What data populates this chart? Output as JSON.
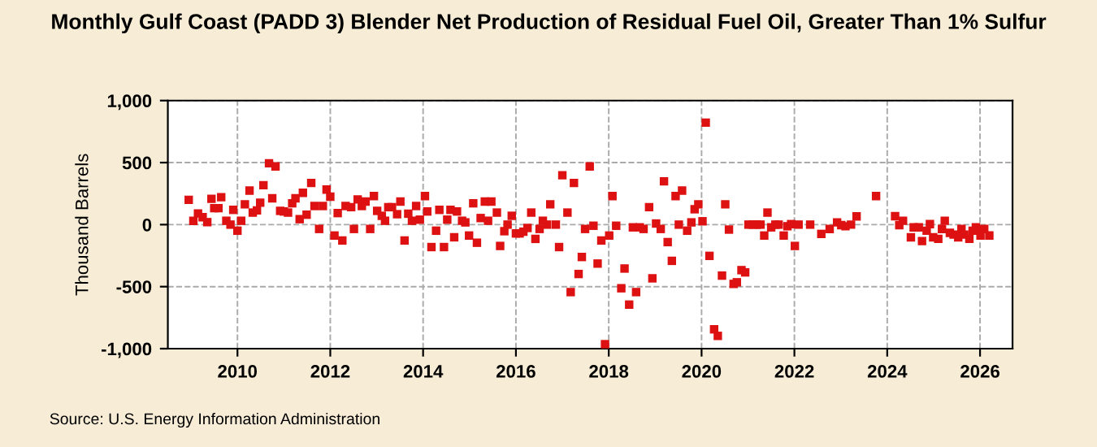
{
  "chart_data": {
    "type": "scatter",
    "title": "Monthly Gulf Coast (PADD 3) Blender Net Production of Residual Fuel Oil, Greater Than 1% Sulfur",
    "ylabel": "Thousand Barrels",
    "annotations": [
      "Source: U.S. Energy Information Administration"
    ],
    "x": [
      2008.95,
      2009.05,
      2009.15,
      2009.25,
      2009.35,
      2009.44,
      2009.5,
      2009.59,
      2009.65,
      2009.76,
      2009.85,
      2009.91,
      2010.0,
      2010.08,
      2010.16,
      2010.26,
      2010.33,
      2010.42,
      2010.49,
      2010.56,
      2010.68,
      2010.75,
      2010.82,
      2010.92,
      2011.0,
      2011.09,
      2011.18,
      2011.25,
      2011.34,
      2011.41,
      2011.49,
      2011.59,
      2011.66,
      2011.76,
      2011.84,
      2011.92,
      2012.0,
      2012.09,
      2012.16,
      2012.26,
      2012.33,
      2012.45,
      2012.51,
      2012.59,
      2012.68,
      2012.76,
      2012.86,
      2012.94,
      2013.01,
      2013.11,
      2013.18,
      2013.25,
      2013.33,
      2013.44,
      2013.51,
      2013.6,
      2013.68,
      2013.76,
      2013.85,
      2013.93,
      2014.04,
      2014.09,
      2014.18,
      2014.28,
      2014.35,
      2014.45,
      2014.52,
      2014.59,
      2014.67,
      2014.73,
      2014.84,
      2014.91,
      2014.99,
      2015.08,
      2015.16,
      2015.24,
      2015.33,
      2015.4,
      2015.47,
      2015.59,
      2015.66,
      2015.75,
      2015.82,
      2015.91,
      2016.0,
      2016.08,
      2016.16,
      2016.25,
      2016.33,
      2016.42,
      2016.51,
      2016.58,
      2016.67,
      2016.74,
      2016.86,
      2016.93,
      2017.0,
      2017.11,
      2017.18,
      2017.25,
      2017.35,
      2017.42,
      2017.49,
      2017.59,
      2017.67,
      2017.76,
      2017.84,
      2017.92,
      2018.01,
      2018.08,
      2018.16,
      2018.27,
      2018.34,
      2018.44,
      2018.52,
      2018.59,
      2018.67,
      2018.75,
      2018.87,
      2018.94,
      2019.02,
      2019.12,
      2019.19,
      2019.27,
      2019.36,
      2019.44,
      2019.51,
      2019.58,
      2019.69,
      2019.78,
      2019.85,
      2019.93,
      2020.02,
      2020.09,
      2020.17,
      2020.27,
      2020.35,
      2020.44,
      2020.51,
      2020.59,
      2020.69,
      2020.76,
      2020.86,
      2020.94,
      2021.01,
      2021.1,
      2021.19,
      2021.27,
      2021.35,
      2021.42,
      2021.5,
      2021.59,
      2021.66,
      2021.77,
      2021.85,
      2021.93,
      2022.01,
      2022.09,
      2022.34,
      2022.58,
      2022.76,
      2022.92,
      2023.01,
      2023.1,
      2023.22,
      2023.34,
      2023.76,
      2024.17,
      2024.26,
      2024.34,
      2024.51,
      2024.57,
      2024.68,
      2024.75,
      2024.85,
      2024.92,
      2024.99,
      2025.1,
      2025.18,
      2025.24,
      2025.35,
      2025.43,
      2025.53,
      2025.6,
      2025.66,
      2025.77,
      2025.84,
      2025.91,
      2026.01,
      2026.09,
      2026.2
    ],
    "series": [
      {
        "color": "#dd1111",
        "values": [
          200,
          30,
          90,
          60,
          20,
          208,
          133,
          133,
          221,
          31,
          0,
          119,
          -49,
          31,
          164,
          274,
          97,
          115,
          177,
          318,
          495,
          212,
          469,
          111,
          106,
          97,
          172,
          212,
          44,
          256,
          80,
          336,
          150,
          -35,
          150,
          283,
          225,
          -88,
          93,
          -128,
          150,
          141,
          -35,
          203,
          150,
          186,
          -35,
          230,
          111,
          71,
          31,
          141,
          141,
          84,
          186,
          -128,
          88,
          31,
          150,
          40,
          230,
          106,
          -181,
          -49,
          119,
          -181,
          40,
          119,
          -102,
          106,
          31,
          18,
          -88,
          172,
          -146,
          53,
          186,
          31,
          186,
          97,
          -172,
          -53,
          0,
          71,
          -71,
          -71,
          -57,
          -27,
          97,
          -115,
          -35,
          31,
          0,
          164,
          0,
          -181,
          398,
          97,
          -544,
          336,
          -398,
          -261,
          -35,
          469,
          -9,
          -314,
          -128,
          -964,
          -88,
          230,
          -9,
          -513,
          -354,
          -645,
          -22,
          -544,
          -22,
          -35,
          141,
          -433,
          9,
          -35,
          349,
          -141,
          -292,
          230,
          0,
          274,
          -49,
          18,
          124,
          164,
          27,
          822,
          -252,
          -844,
          -897,
          -411,
          164,
          -40,
          -478,
          -465,
          -367,
          -385,
          0,
          0,
          0,
          0,
          -88,
          97,
          -22,
          0,
          0,
          -88,
          -13,
          4,
          -172,
          0,
          0,
          -75,
          -35,
          18,
          -4,
          -13,
          0,
          66,
          230,
          68,
          -4,
          31,
          -102,
          -22,
          -22,
          -133,
          -49,
          4,
          -102,
          -115,
          -35,
          31,
          -66,
          -80,
          -102,
          -35,
          -80,
          -115,
          -49,
          -22,
          -88,
          -35,
          -88
        ]
      }
    ],
    "xlim": [
      2008.5,
      2026.7
    ],
    "xticks": [
      2010,
      2012,
      2014,
      2016,
      2018,
      2020,
      2022,
      2024,
      2026
    ],
    "ylim": [
      -1000,
      1000
    ],
    "yticks": [
      {
        "value": -1000,
        "label": "-1,000"
      },
      {
        "value": -500,
        "label": "-500"
      },
      0,
      500,
      {
        "value": 1000,
        "label": "1,000"
      }
    ],
    "grid": true,
    "marker": "square"
  }
}
